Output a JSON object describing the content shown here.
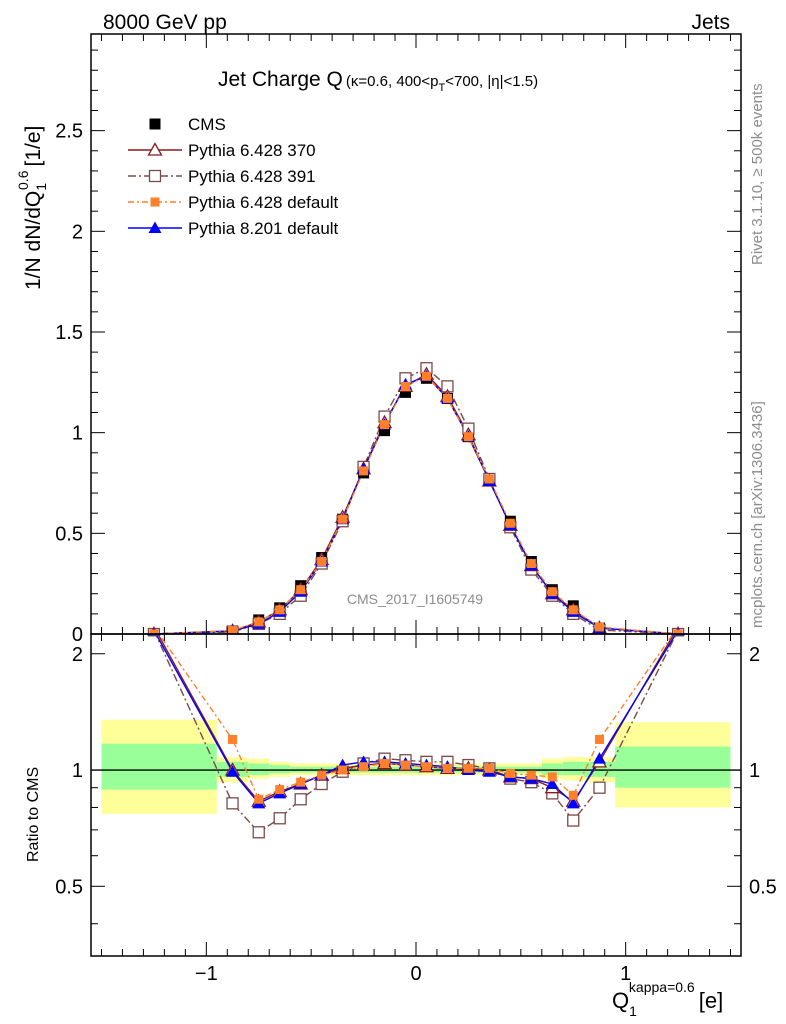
{
  "header": {
    "left": "8000 GeV pp",
    "right": "Jets"
  },
  "side_text": {
    "rivet": "Rivet 3.1.10, ≥ 500k events",
    "mcplots": "mcplots.cern.ch [arXiv:1306.3436]"
  },
  "chart_data": {
    "type": "line",
    "title": "Jet Charge Q",
    "subtitle": "(κ=0.6, 400<p",
    "subtitle_sub": "T",
    "subtitle_tail": "<700, |η|<1.5)",
    "watermark": "CMS_2017_I1605749",
    "ylabel_main": "1/N dN/dQ",
    "ylabel_sub": "1",
    "ylabel_sup": "0.6",
    "ylabel_unit": "[1/e]",
    "ylabel_ratio": "Ratio to CMS",
    "xlabel": "Q",
    "xlabel_sub": "1",
    "xlabel_sup": "kappa=0.6",
    "xlabel_unit": "[e]",
    "xlim": [
      -1.55,
      1.55
    ],
    "ylim": [
      0,
      2.98
    ],
    "ratio_ylim": [
      0.33,
      2.25
    ],
    "x_ticks": [
      -1,
      0,
      1
    ],
    "x_tick_labels": [
      "−1",
      "0",
      "1"
    ],
    "y_ticks": [
      0,
      0.5,
      1,
      1.5,
      2,
      2.5
    ],
    "y_tick_labels": [
      "0",
      "0.5",
      "1",
      "1.5",
      "2",
      "2.5"
    ],
    "ratio_ticks": [
      0.5,
      1,
      2
    ],
    "ratio_tick_labels": [
      "0.5",
      "1",
      "2"
    ],
    "legend_position": "top-left",
    "x": [
      -1.25,
      -0.875,
      -0.75,
      -0.65,
      -0.55,
      -0.45,
      -0.35,
      -0.25,
      -0.15,
      -0.05,
      0.05,
      0.15,
      0.25,
      0.35,
      0.45,
      0.55,
      0.65,
      0.75,
      0.875,
      1.25
    ],
    "series": [
      {
        "name": "CMS",
        "style": "data",
        "color": "#000000",
        "values": [
          0.0,
          0.015,
          0.07,
          0.13,
          0.24,
          0.38,
          0.57,
          0.8,
          1.01,
          1.2,
          1.27,
          1.17,
          0.98,
          0.76,
          0.56,
          0.36,
          0.22,
          0.14,
          0.03,
          0.0
        ]
      },
      {
        "name": "Pythia 6.428 370",
        "style": "triangle-open",
        "color": "#8b1a1a",
        "values": [
          0.0,
          0.015,
          0.06,
          0.12,
          0.22,
          0.37,
          0.58,
          0.82,
          1.05,
          1.23,
          1.29,
          1.18,
          0.99,
          0.76,
          0.54,
          0.34,
          0.2,
          0.12,
          0.03,
          0.0
        ],
        "ratio": [
          2.35,
          1.0,
          0.83,
          0.88,
          0.92,
          0.97,
          1.01,
          1.03,
          1.04,
          1.03,
          1.02,
          1.01,
          1.01,
          1.0,
          0.96,
          0.95,
          0.9,
          0.83,
          1.05,
          2.35
        ]
      },
      {
        "name": "Pythia 6.428 391",
        "style": "square-open",
        "color": "#7a4a4a",
        "values": [
          0.0,
          0.01,
          0.05,
          0.1,
          0.19,
          0.35,
          0.56,
          0.83,
          1.08,
          1.27,
          1.32,
          1.23,
          1.02,
          0.77,
          0.53,
          0.32,
          0.19,
          0.1,
          0.02,
          0.0
        ],
        "ratio": [
          2.3,
          0.82,
          0.69,
          0.75,
          0.84,
          0.92,
          0.99,
          1.04,
          1.07,
          1.06,
          1.05,
          1.05,
          1.03,
          1.01,
          0.95,
          0.93,
          0.87,
          0.74,
          0.9,
          2.3
        ]
      },
      {
        "name": "Pythia 6.428 default",
        "style": "square-filled",
        "color": "#ff7f2a",
        "values": [
          0.0,
          0.018,
          0.06,
          0.12,
          0.22,
          0.36,
          0.57,
          0.81,
          1.04,
          1.23,
          1.28,
          1.17,
          0.98,
          0.77,
          0.55,
          0.35,
          0.21,
          0.12,
          0.035,
          0.0
        ],
        "ratio": [
          2.35,
          1.2,
          0.84,
          0.89,
          0.93,
          0.97,
          1.0,
          1.02,
          1.04,
          1.03,
          1.02,
          1.01,
          1.01,
          1.01,
          0.98,
          0.97,
          0.96,
          0.86,
          1.2,
          2.35
        ]
      },
      {
        "name": "Pythia 8.201 default",
        "style": "triangle-filled",
        "color": "#0000ff",
        "values": [
          0.0,
          0.015,
          0.05,
          0.11,
          0.21,
          0.36,
          0.57,
          0.82,
          1.04,
          1.24,
          1.28,
          1.17,
          0.98,
          0.76,
          0.54,
          0.34,
          0.2,
          0.11,
          0.03,
          0.0
        ],
        "ratio": [
          2.3,
          0.99,
          0.82,
          0.87,
          0.92,
          0.97,
          1.03,
          1.05,
          1.05,
          1.04,
          1.03,
          1.02,
          1.0,
          0.99,
          0.96,
          0.95,
          0.92,
          0.82,
          1.07,
          2.3
        ]
      }
    ],
    "bands": [
      {
        "x0": -1.5,
        "x1": -0.95,
        "yellow": [
          0.77,
          1.35
        ],
        "green": [
          0.89,
          1.17
        ]
      },
      {
        "x0": -0.95,
        "x1": -0.8,
        "yellow": [
          0.93,
          1.08
        ],
        "green": [
          0.96,
          1.05
        ]
      },
      {
        "x0": -0.8,
        "x1": -0.7,
        "yellow": [
          0.95,
          1.07
        ],
        "green": [
          0.97,
          1.04
        ]
      },
      {
        "x0": -0.7,
        "x1": -0.6,
        "yellow": [
          0.96,
          1.05
        ],
        "green": [
          0.98,
          1.03
        ]
      },
      {
        "x0": -0.6,
        "x1": 0.6,
        "yellow": [
          0.97,
          1.04
        ],
        "green": [
          0.985,
          1.02
        ]
      },
      {
        "x0": 0.6,
        "x1": 0.7,
        "yellow": [
          0.95,
          1.07
        ],
        "green": [
          0.97,
          1.04
        ]
      },
      {
        "x0": 0.7,
        "x1": 0.8,
        "yellow": [
          0.94,
          1.08
        ],
        "green": [
          0.97,
          1.05
        ]
      },
      {
        "x0": 0.8,
        "x1": 0.95,
        "yellow": [
          0.93,
          1.08
        ],
        "green": [
          0.96,
          1.05
        ]
      },
      {
        "x0": 0.95,
        "x1": 1.5,
        "yellow": [
          0.8,
          1.33
        ],
        "green": [
          0.9,
          1.15
        ]
      }
    ]
  }
}
